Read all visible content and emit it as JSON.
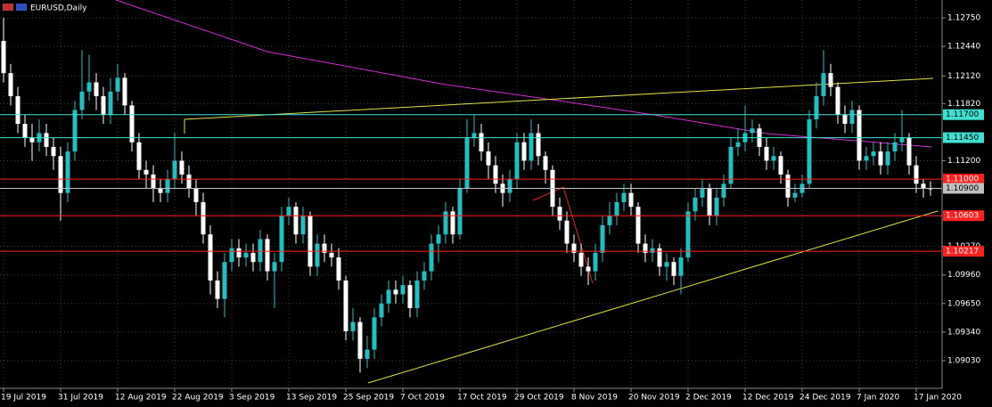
{
  "chart_data": {
    "type": "candlestick",
    "title": "EURUSD,Daily",
    "categories": [
      "19 Jul 2019",
      null,
      null,
      null,
      null,
      null,
      null,
      null,
      "31 Jul 2019",
      null,
      null,
      null,
      null,
      null,
      null,
      null,
      "12 Aug 2019",
      null,
      null,
      null,
      null,
      null,
      null,
      null,
      "22 Aug 2019",
      null,
      null,
      null,
      null,
      null,
      null,
      null,
      "3 Sep 2019",
      null,
      null,
      null,
      null,
      null,
      null,
      null,
      "13 Sep 2019",
      null,
      null,
      null,
      null,
      null,
      null,
      null,
      "25 Sep 2019",
      null,
      null,
      null,
      null,
      null,
      null,
      null,
      "7 Oct 2019",
      null,
      null,
      null,
      null,
      null,
      null,
      null,
      "17 Oct 2019",
      null,
      null,
      null,
      null,
      null,
      null,
      null,
      "29 Oct 2019",
      null,
      null,
      null,
      null,
      null,
      null,
      null,
      "8 Nov 2019",
      null,
      null,
      null,
      null,
      null,
      null,
      null,
      "20 Nov 2019",
      null,
      null,
      null,
      null,
      null,
      null,
      null,
      "2 Dec 2019",
      null,
      null,
      null,
      null,
      null,
      null,
      null,
      "12 Dec 2019",
      null,
      null,
      null,
      null,
      null,
      null,
      null,
      "24 Dec 2019",
      null,
      null,
      null,
      null,
      null,
      null,
      null,
      "7 Jan 2020",
      null,
      null,
      null,
      null,
      null,
      null,
      null,
      "17 Jan 2020",
      null,
      null
    ],
    "open": [
      1.125,
      1.1215,
      1.119,
      1.116,
      1.1145,
      1.114,
      1.115,
      1.1135,
      1.1125,
      1.1085,
      1.113,
      1.1175,
      1.1195,
      1.1205,
      1.119,
      1.117,
      1.1195,
      1.121,
      1.118,
      1.114,
      1.111,
      1.1105,
      1.109,
      1.1085,
      1.11,
      1.112,
      1.1105,
      1.109,
      1.1075,
      1.104,
      1.099,
      1.097,
      1.101,
      1.1025,
      1.1015,
      1.102,
      1.101,
      1.1035,
      1.1,
      1.101,
      1.106,
      1.107,
      1.104,
      1.106,
      1.1005,
      1.103,
      1.102,
      1.1015,
      1.099,
      1.0935,
      1.0945,
      1.0905,
      1.0915,
      1.095,
      1.0965,
      1.098,
      1.0975,
      1.0985,
      1.096,
      1.099,
      1.1,
      1.103,
      1.104,
      1.1065,
      1.104,
      1.109,
      1.1145,
      1.115,
      1.113,
      1.1115,
      1.1095,
      1.1085,
      1.11,
      1.114,
      1.112,
      1.115,
      1.1125,
      1.111,
      1.107,
      1.1055,
      1.103,
      1.102,
      1.1005,
      1.1,
      1.102,
      1.105,
      1.106,
      1.1075,
      1.1085,
      1.107,
      1.103,
      1.102,
      1.1025,
      1.1005,
      1.101,
      1.0995,
      1.1015,
      1.1065,
      1.108,
      1.109,
      1.106,
      1.108,
      1.1095,
      1.1135,
      1.114,
      1.115,
      1.1155,
      1.1135,
      1.112,
      1.1125,
      1.1105,
      1.108,
      1.1085,
      1.1095,
      1.1165,
      1.119,
      1.1215,
      1.12,
      1.117,
      1.116,
      1.1175,
      1.112,
      1.1125,
      1.113,
      1.1115,
      1.113,
      1.114,
      1.1145,
      1.1115,
      1.1095,
      1.109
    ],
    "high": [
      1.1275,
      1.1225,
      1.12,
      1.117,
      1.116,
      1.1165,
      1.116,
      1.1145,
      1.1135,
      1.114,
      1.1185,
      1.124,
      1.1235,
      1.1215,
      1.12,
      1.121,
      1.1225,
      1.1215,
      1.1185,
      1.115,
      1.112,
      1.1115,
      1.11,
      1.111,
      1.115,
      1.113,
      1.1115,
      1.11,
      1.1085,
      1.105,
      1.1,
      1.102,
      1.1035,
      1.1035,
      1.103,
      1.103,
      1.1045,
      1.104,
      1.102,
      1.107,
      1.108,
      1.1075,
      1.107,
      1.1065,
      1.104,
      1.104,
      1.103,
      1.1025,
      1.0995,
      1.096,
      1.095,
      1.093,
      1.096,
      1.0975,
      1.099,
      1.099,
      1.0995,
      1.099,
      1.1,
      1.101,
      1.104,
      1.105,
      1.1075,
      1.107,
      1.11,
      1.1165,
      1.117,
      1.116,
      1.114,
      1.1125,
      1.1105,
      1.111,
      1.115,
      1.115,
      1.1165,
      1.116,
      1.113,
      1.1115,
      1.108,
      1.1065,
      1.104,
      1.103,
      1.1015,
      1.103,
      1.106,
      1.1075,
      1.1085,
      1.1095,
      1.1095,
      1.1075,
      1.104,
      1.1035,
      1.103,
      1.102,
      1.1015,
      1.1025,
      1.1075,
      1.109,
      1.11,
      1.1095,
      1.109,
      1.1105,
      1.1145,
      1.1155,
      1.118,
      1.1165,
      1.116,
      1.1145,
      1.1135,
      1.113,
      1.111,
      1.1095,
      1.1105,
      1.1175,
      1.1205,
      1.124,
      1.1225,
      1.1205,
      1.118,
      1.1185,
      1.118,
      1.1135,
      1.114,
      1.114,
      1.114,
      1.115,
      1.1175,
      1.115,
      1.1125,
      1.11,
      1.1098
    ],
    "low": [
      1.1205,
      1.118,
      1.115,
      1.1135,
      1.112,
      1.113,
      1.1125,
      1.111,
      1.1055,
      1.1075,
      1.112,
      1.1165,
      1.1185,
      1.1175,
      1.116,
      1.116,
      1.1185,
      1.117,
      1.113,
      1.11,
      1.109,
      1.1075,
      1.1075,
      1.1075,
      1.109,
      1.1095,
      1.108,
      1.106,
      1.103,
      1.0975,
      1.096,
      1.095,
      1.1,
      1.1005,
      1.1005,
      1.1,
      1.1,
      1.099,
      1.096,
      1.1,
      1.105,
      1.103,
      1.103,
      1.0995,
      1.0995,
      1.101,
      1.1005,
      1.098,
      1.0925,
      1.0925,
      1.089,
      1.0895,
      1.0905,
      1.094,
      1.0955,
      1.0965,
      1.0965,
      1.095,
      1.095,
      1.098,
      1.099,
      1.101,
      1.103,
      1.103,
      1.1035,
      1.1085,
      1.1135,
      1.112,
      1.11,
      1.1085,
      1.107,
      1.1075,
      1.109,
      1.111,
      1.111,
      1.1115,
      1.1095,
      1.106,
      1.1045,
      1.102,
      1.101,
      1.0995,
      1.0985,
      1.099,
      1.101,
      1.104,
      1.105,
      1.1065,
      1.106,
      1.102,
      1.101,
      1.101,
      1.0995,
      1.099,
      1.0985,
      1.0975,
      1.101,
      1.1055,
      1.107,
      1.105,
      1.105,
      1.107,
      1.109,
      1.1125,
      1.113,
      1.114,
      1.1125,
      1.111,
      1.111,
      1.1095,
      1.107,
      1.1075,
      1.108,
      1.109,
      1.1155,
      1.118,
      1.119,
      1.116,
      1.115,
      1.115,
      1.111,
      1.111,
      1.1115,
      1.1105,
      1.1105,
      1.112,
      1.113,
      1.1105,
      1.1085,
      1.108,
      1.1082
    ],
    "close": [
      1.1215,
      1.119,
      1.116,
      1.1145,
      1.114,
      1.115,
      1.1135,
      1.1125,
      1.1085,
      1.113,
      1.1175,
      1.1195,
      1.1205,
      1.119,
      1.117,
      1.1195,
      1.121,
      1.118,
      1.114,
      1.111,
      1.1105,
      1.109,
      1.1085,
      1.11,
      1.112,
      1.1105,
      1.109,
      1.1075,
      1.104,
      1.099,
      1.097,
      1.101,
      1.1025,
      1.1015,
      1.102,
      1.101,
      1.1035,
      1.1,
      1.101,
      1.106,
      1.107,
      1.104,
      1.106,
      1.1005,
      1.103,
      1.102,
      1.1015,
      1.099,
      1.0935,
      1.0945,
      1.0905,
      1.0915,
      1.095,
      1.0965,
      1.098,
      1.0975,
      1.0985,
      1.096,
      1.099,
      1.1,
      1.103,
      1.104,
      1.1065,
      1.104,
      1.109,
      1.1145,
      1.115,
      1.113,
      1.1115,
      1.1095,
      1.1085,
      1.11,
      1.114,
      1.112,
      1.115,
      1.1125,
      1.111,
      1.107,
      1.1055,
      1.103,
      1.102,
      1.1005,
      1.1,
      1.102,
      1.105,
      1.106,
      1.1075,
      1.1085,
      1.107,
      1.103,
      1.102,
      1.1025,
      1.1005,
      1.101,
      1.0995,
      1.1015,
      1.1065,
      1.108,
      1.109,
      1.106,
      1.108,
      1.1095,
      1.1135,
      1.114,
      1.115,
      1.1155,
      1.1135,
      1.112,
      1.1125,
      1.1105,
      1.108,
      1.1085,
      1.1095,
      1.1165,
      1.119,
      1.1215,
      1.12,
      1.117,
      1.116,
      1.1175,
      1.112,
      1.1125,
      1.113,
      1.1115,
      1.113,
      1.114,
      1.1145,
      1.1115,
      1.1095,
      1.109,
      1.1089
    ],
    "up_color": "#20c0c0",
    "down_color": "#ffffff",
    "ylim": [
      1.0873,
      1.12944
    ],
    "yticks": [
      {
        "value": 1.1275,
        "label": "1.12750"
      },
      {
        "value": 1.1244,
        "label": "1.12440"
      },
      {
        "value": 1.1212,
        "label": "1.12120"
      },
      {
        "value": 1.1182,
        "label": "1.11820"
      },
      {
        "value": 1.112,
        "label": "1.11200"
      },
      {
        "value": 1.1027,
        "label": "1.10270"
      },
      {
        "value": 1.0996,
        "label": "1.09960"
      },
      {
        "value": 1.0965,
        "label": "1.09650"
      },
      {
        "value": 1.0934,
        "label": "1.09340"
      },
      {
        "value": 1.0903,
        "label": "1.09030"
      }
    ],
    "levels": [
      {
        "value": 1.117,
        "label": "1.11700",
        "color": "#40e0d0"
      },
      {
        "value": 1.1145,
        "label": "1.11450",
        "color": "#40e0d0"
      },
      {
        "value": 1.11,
        "label": "1.11000",
        "color": "#ff2020"
      },
      {
        "value": 1.109,
        "label": "1.10900",
        "color": "#c0c0c0"
      },
      {
        "value": 1.10603,
        "label": "1.10603",
        "color": "#ff2020"
      },
      {
        "value": 1.10217,
        "label": "1.10217",
        "color": "#ff2020"
      }
    ],
    "grid": true
  }
}
